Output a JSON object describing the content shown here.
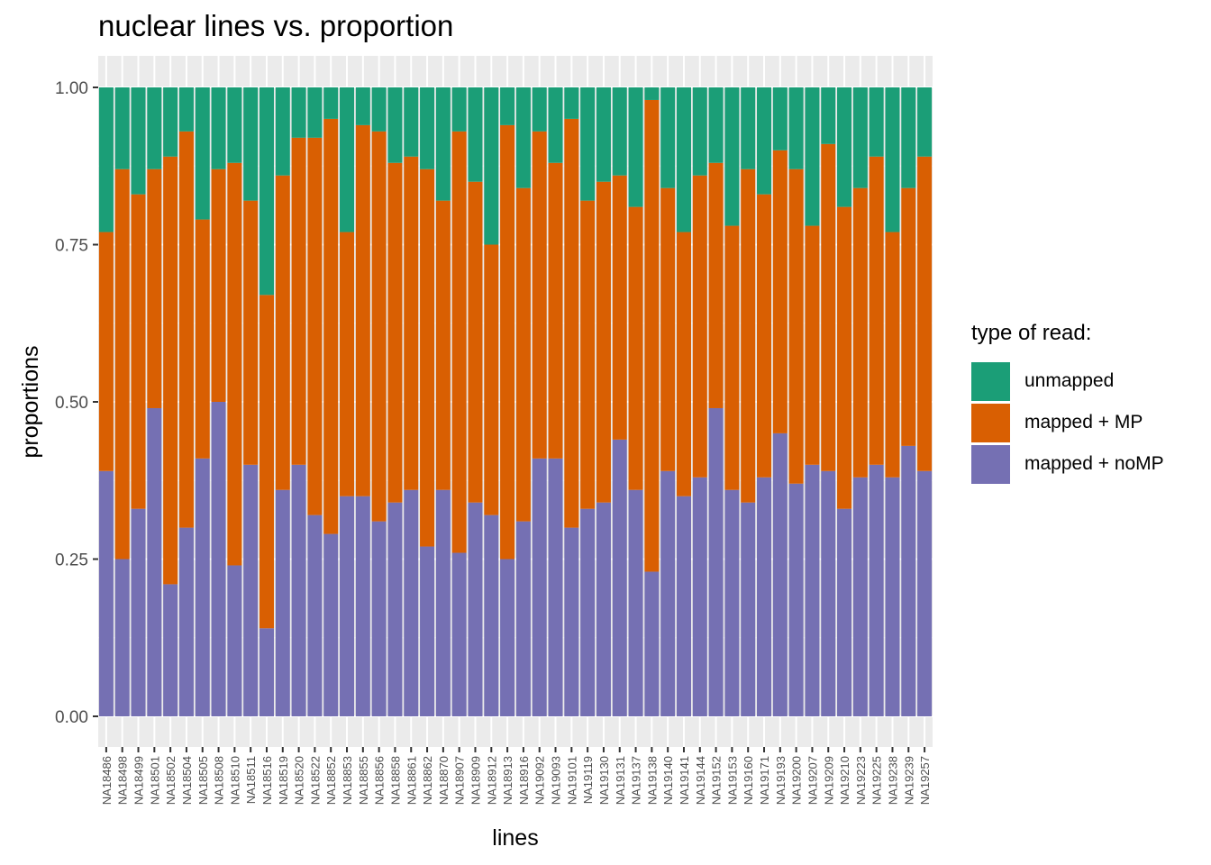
{
  "chart_data": {
    "type": "bar",
    "stacked": true,
    "title": "nuclear lines vs. proportion",
    "xlabel": "lines",
    "ylabel": "proportions",
    "ylim": [
      0,
      1
    ],
    "yticks": [
      "0.00",
      "0.25",
      "0.50",
      "0.75",
      "1.00"
    ],
    "legend_title": "type of read:",
    "legend_position": "right",
    "categories": [
      "NA18486",
      "NA18498",
      "NA18499",
      "NA18501",
      "NA18502",
      "NA18504",
      "NA18505",
      "NA18508",
      "NA18510",
      "NA18511",
      "NA18516",
      "NA18519",
      "NA18520",
      "NA18522",
      "NA18852",
      "NA18853",
      "NA18855",
      "NA18856",
      "NA18858",
      "NA18861",
      "NA18862",
      "NA18870",
      "NA18907",
      "NA18909",
      "NA18912",
      "NA18913",
      "NA18916",
      "NA19092",
      "NA19093",
      "NA19101",
      "NA19119",
      "NA19130",
      "NA19131",
      "NA19137",
      "NA19138",
      "NA19140",
      "NA19141",
      "NA19144",
      "NA19152",
      "NA19153",
      "NA19160",
      "NA19171",
      "NA19193",
      "NA19200",
      "NA19207",
      "NA19209",
      "NA19210",
      "NA19223",
      "NA19225",
      "NA19238",
      "NA19239",
      "NA19257"
    ],
    "series": [
      {
        "name": "mapped + noMP",
        "color": "#7570B3",
        "values": [
          0.39,
          0.25,
          0.33,
          0.49,
          0.21,
          0.3,
          0.41,
          0.5,
          0.24,
          0.4,
          0.14,
          0.36,
          0.4,
          0.32,
          0.29,
          0.35,
          0.35,
          0.31,
          0.34,
          0.36,
          0.27,
          0.36,
          0.26,
          0.34,
          0.32,
          0.25,
          0.31,
          0.41,
          0.41,
          0.3,
          0.33,
          0.34,
          0.44,
          0.36,
          0.23,
          0.39,
          0.35,
          0.38,
          0.49,
          0.36,
          0.34,
          0.38,
          0.45,
          0.37,
          0.4,
          0.39,
          0.33,
          0.38,
          0.4,
          0.38,
          0.43,
          0.39
        ]
      },
      {
        "name": "mapped + MP",
        "color": "#D95F02",
        "values": [
          0.38,
          0.62,
          0.5,
          0.38,
          0.68,
          0.63,
          0.38,
          0.37,
          0.64,
          0.42,
          0.53,
          0.5,
          0.52,
          0.6,
          0.66,
          0.42,
          0.59,
          0.62,
          0.54,
          0.53,
          0.6,
          0.46,
          0.67,
          0.51,
          0.43,
          0.69,
          0.53,
          0.52,
          0.47,
          0.65,
          0.49,
          0.51,
          0.42,
          0.45,
          0.75,
          0.45,
          0.42,
          0.48,
          0.39,
          0.42,
          0.53,
          0.45,
          0.45,
          0.5,
          0.38,
          0.52,
          0.48,
          0.46,
          0.49,
          0.39,
          0.41,
          0.5
        ]
      },
      {
        "name": "unmapped",
        "color": "#1B9E77",
        "values": [
          0.23,
          0.13,
          0.17,
          0.13,
          0.11,
          0.07,
          0.21,
          0.13,
          0.12,
          0.18,
          0.33,
          0.14,
          0.08,
          0.08,
          0.05,
          0.23,
          0.06,
          0.07,
          0.12,
          0.11,
          0.13,
          0.18,
          0.07,
          0.15,
          0.25,
          0.06,
          0.16,
          0.07,
          0.12,
          0.05,
          0.18,
          0.15,
          0.14,
          0.19,
          0.02,
          0.16,
          0.23,
          0.14,
          0.12,
          0.22,
          0.13,
          0.17,
          0.1,
          0.13,
          0.22,
          0.09,
          0.19,
          0.16,
          0.11,
          0.23,
          0.16,
          0.11
        ]
      }
    ],
    "legend_order": [
      "unmapped",
      "mapped + MP",
      "mapped + noMP"
    ],
    "grid": true
  }
}
